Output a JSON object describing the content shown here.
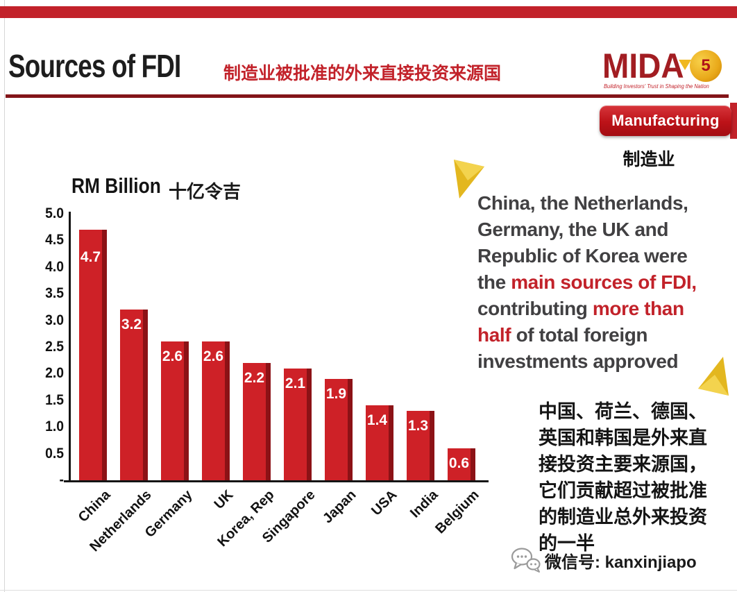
{
  "header": {
    "title": "Sources of FDI",
    "subtitle_zh": "制造业被批准的外来直接投资来源国"
  },
  "logo": {
    "name": "MIDA",
    "badge_number": "5",
    "tagline": "Building Investors' Trust in Shaping the Nation"
  },
  "sector_tag": {
    "label": "Manufacturing",
    "label_zh": "制造业"
  },
  "chart_data": {
    "type": "bar",
    "title": "RM Billion",
    "title_zh": "十亿令吉",
    "categories": [
      "China",
      "Netherlands",
      "Germany",
      "UK",
      "Korea, Rep",
      "Singapore",
      "Japan",
      "USA",
      "India",
      "Belgium"
    ],
    "values": [
      4.7,
      3.2,
      2.6,
      2.6,
      2.2,
      2.1,
      1.9,
      1.4,
      1.3,
      0.6
    ],
    "value_labels": [
      "4.7",
      "3.2",
      "2.6",
      "2.6",
      "2.2",
      "2.1",
      "1.9",
      "1.4",
      "1.3",
      "0.6"
    ],
    "ylim": [
      0,
      5
    ],
    "ytick_labels": [
      "5.0",
      "4.5",
      "4.0",
      "3.5",
      "3.0",
      "2.5",
      "2.0",
      "1.5",
      "1.0",
      "0.5",
      "-"
    ],
    "xlabel": "",
    "ylabel": "RM Billion",
    "grid": false,
    "legend": "none",
    "bar_color": "#ce2127",
    "bar_side_color": "#8c1216",
    "value_label_color": "#ffffff"
  },
  "annotation_en": {
    "text_color": "#414042",
    "highlight_color": "#c2222a",
    "lines": [
      [
        {
          "text": "China, the Netherlands,",
          "red": false
        }
      ],
      [
        {
          "text": "Germany, the UK and",
          "red": false
        }
      ],
      [
        {
          "text": "Republic of Korea were",
          "red": false
        }
      ],
      [
        {
          "text": "the ",
          "red": false
        },
        {
          "text": "main sources of FDI,",
          "red": true
        }
      ],
      [
        {
          "text": "contributing ",
          "red": false
        },
        {
          "text": "more than",
          "red": true
        }
      ],
      [
        {
          "text": "half",
          "red": true
        },
        {
          "text": " of total foreign",
          "red": false
        }
      ],
      [
        {
          "text": "investments approved",
          "red": false
        }
      ]
    ]
  },
  "annotation_zh": {
    "lines": [
      "中国、荷兰、德国、",
      "英国和韩国是外来直",
      "接投资主要来源国，",
      "它们贡献超过被批准",
      "的制造业总外来投资",
      "的一半"
    ]
  },
  "footer": {
    "wechat_label": "微信号: kanxinjiapo"
  },
  "colors": {
    "accent_red": "#c2222a",
    "rule_maroon": "#831519",
    "gold": "#e8b923"
  }
}
